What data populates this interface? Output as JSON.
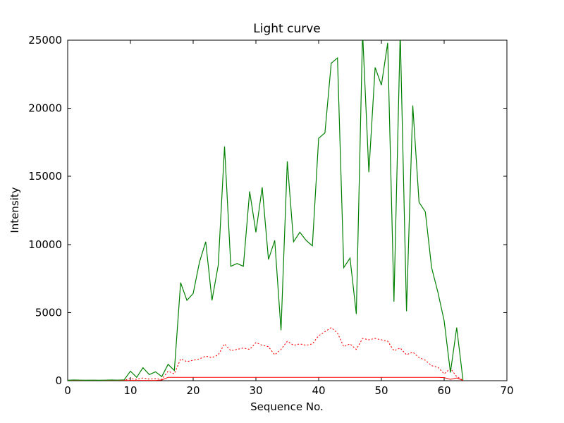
{
  "figure": {
    "background": "#ffffff",
    "frame_color": "#000000"
  },
  "chart_data": {
    "type": "line",
    "title": "Light curve",
    "xlabel": "Sequence No.",
    "ylabel": "Intensity",
    "xlim": [
      0,
      70
    ],
    "ylim": [
      0,
      25000
    ],
    "xticks": [
      0,
      10,
      20,
      30,
      40,
      50,
      60,
      70
    ],
    "yticks": [
      0,
      5000,
      10000,
      15000,
      20000,
      25000
    ],
    "grid": false,
    "legend": "none",
    "x": [
      0,
      1,
      2,
      3,
      4,
      5,
      6,
      7,
      8,
      9,
      10,
      11,
      12,
      13,
      14,
      15,
      16,
      17,
      18,
      19,
      20,
      21,
      22,
      23,
      24,
      25,
      26,
      27,
      28,
      29,
      30,
      31,
      32,
      33,
      34,
      35,
      36,
      37,
      38,
      39,
      40,
      41,
      42,
      43,
      44,
      45,
      46,
      47,
      48,
      49,
      50,
      51,
      52,
      53,
      54,
      55,
      56,
      57,
      58,
      59,
      60,
      61,
      62,
      63
    ],
    "series": [
      {
        "name": "green-solid-line",
        "color": "#008000",
        "style": "solid",
        "linewidth": 1.2,
        "values": [
          30,
          50,
          40,
          30,
          40,
          30,
          40,
          50,
          40,
          60,
          700,
          250,
          950,
          450,
          650,
          300,
          1200,
          750,
          7200,
          5900,
          6400,
          8700,
          10200,
          5900,
          8500,
          17200,
          8400,
          8600,
          8400,
          13900,
          10900,
          14200,
          8900,
          10300,
          3700,
          16100,
          10200,
          10900,
          10300,
          9900,
          17800,
          18200,
          23300,
          23700,
          8300,
          9000,
          4900,
          25600,
          15300,
          23000,
          21700,
          24800,
          5800,
          25600,
          5100,
          20200,
          13100,
          12400,
          8300,
          6500,
          4400,
          600,
          3900,
          60
        ]
      },
      {
        "name": "red-dotted-line",
        "color": "#ff0000",
        "style": "dotted",
        "linewidth": 1.1,
        "values": [
          30,
          30,
          30,
          30,
          30,
          30,
          30,
          30,
          30,
          30,
          150,
          100,
          200,
          120,
          150,
          100,
          700,
          500,
          1600,
          1400,
          1500,
          1600,
          1800,
          1700,
          1900,
          2700,
          2200,
          2300,
          2400,
          2300,
          2800,
          2600,
          2500,
          1900,
          2300,
          2900,
          2600,
          2700,
          2600,
          2700,
          3300,
          3600,
          3900,
          3500,
          2500,
          2700,
          2300,
          3100,
          3000,
          3100,
          3000,
          2900,
          2200,
          2400,
          1900,
          2100,
          1700,
          1500,
          1100,
          1000,
          500,
          900,
          300,
          30
        ]
      },
      {
        "name": "red-solid-line",
        "color": "#ff0000",
        "style": "solid",
        "linewidth": 1.0,
        "values": [
          20,
          20,
          20,
          20,
          20,
          20,
          20,
          20,
          20,
          20,
          20,
          20,
          20,
          20,
          20,
          50,
          250,
          250,
          250,
          250,
          250,
          250,
          250,
          250,
          250,
          250,
          250,
          250,
          250,
          250,
          250,
          250,
          250,
          250,
          250,
          250,
          250,
          250,
          250,
          250,
          250,
          250,
          250,
          250,
          250,
          250,
          250,
          250,
          250,
          250,
          250,
          250,
          250,
          250,
          250,
          250,
          250,
          250,
          250,
          250,
          230,
          100,
          200,
          20
        ]
      }
    ]
  }
}
